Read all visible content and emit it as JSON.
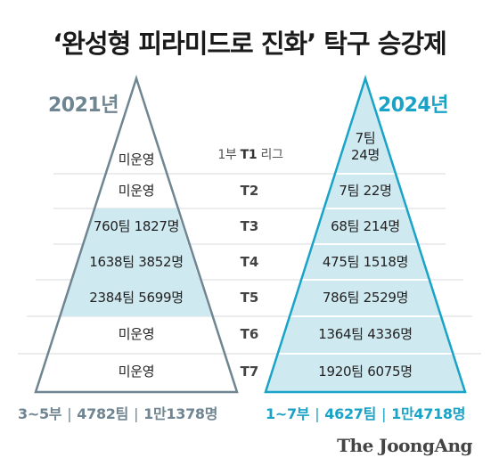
{
  "title": "‘완성형 피라미드로 진화’ 탁구 승강제",
  "colors": {
    "left_accent": "#6f8591",
    "right_accent": "#19a3c7",
    "band_fill": "#cfe9f1",
    "right_fill": "#cfe9f1"
  },
  "left": {
    "year": "2021년",
    "rows": [
      "미운영",
      "미운영",
      "760팀 1827명",
      "1638팀 3852명",
      "2384팀 5699명",
      "미운영",
      "미운영"
    ],
    "summary": {
      "divisions": "3~5부",
      "teams": "4782팀",
      "players": "1만1378명"
    }
  },
  "right": {
    "year": "2024년",
    "row1_line1": "7팀",
    "row1_line2": "24명",
    "rows": [
      "7팀 22명",
      "68팀 214명",
      "475팀 1518명",
      "786팀 2529명",
      "1364팀 4336명",
      "1920팀 6075명"
    ],
    "summary": {
      "divisions": "1~7부",
      "teams": "4627팀",
      "players": "1만4718명"
    }
  },
  "tiers": {
    "t1_prefix": "1부",
    "t1_label": "T1",
    "t1_suffix": "리그",
    "labels": [
      "T2",
      "T3",
      "T4",
      "T5",
      "T6",
      "T7"
    ]
  },
  "summary_separator": "|",
  "brand": "The JoongAng"
}
